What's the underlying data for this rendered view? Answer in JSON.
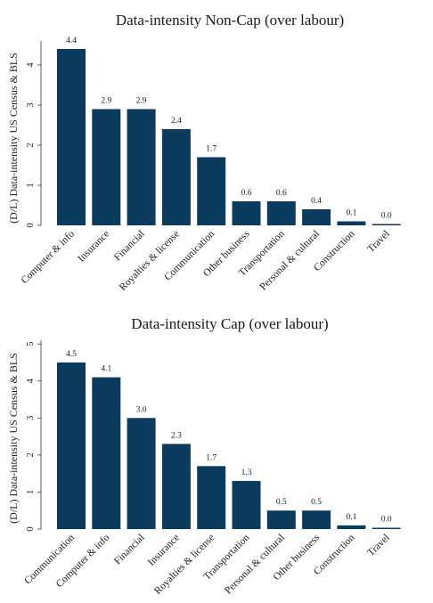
{
  "chart_data": [
    {
      "type": "bar",
      "title": "Data-intensity Non-Cap (over labour)",
      "ylabel": "(D/L) Data-intensity US Census & BLS",
      "xlabel": "",
      "categories": [
        "Computer & info",
        "Insurance",
        "Financial",
        "Royalties & license",
        "Communication",
        "Other business",
        "Transportation",
        "Personal & cultural",
        "Construction",
        "Travel"
      ],
      "values": [
        4.4,
        2.9,
        2.9,
        2.4,
        1.7,
        0.6,
        0.6,
        0.4,
        0.1,
        0.0
      ],
      "value_labels": [
        "4.4",
        "2.9",
        "2.9",
        "2.4",
        "1.7",
        "0.6",
        "0.6",
        "0.4",
        "0.1",
        "0.0"
      ],
      "yticks": [
        "0",
        "1",
        "2",
        "3",
        "4"
      ],
      "ylim": [
        0,
        4.6
      ],
      "bar_color": "#0b3c5d",
      "grid": false,
      "legend": "none"
    },
    {
      "type": "bar",
      "title": "Data-intensity Cap (over labour)",
      "ylabel": "(D/L) Data-intensity US Census & BLS",
      "xlabel": "",
      "categories": [
        "Communication",
        "Computer & info",
        "Financial",
        "Insurance",
        "Royalties & license",
        "Transportation",
        "Personal & cultural",
        "Other business",
        "Construction",
        "Travel"
      ],
      "values": [
        4.5,
        4.1,
        3.0,
        2.3,
        1.7,
        1.3,
        0.5,
        0.5,
        0.1,
        0.0
      ],
      "value_labels": [
        "4.5",
        "4.1",
        "3.0",
        "2.3",
        "1.7",
        "1.3",
        "0.5",
        "0.5",
        "0.1",
        "0.0"
      ],
      "yticks": [
        "0",
        "1",
        "2",
        "3",
        "4",
        "5"
      ],
      "ylim": [
        0,
        5.1
      ],
      "bar_color": "#0b3c5d",
      "grid": false,
      "legend": "none"
    }
  ]
}
